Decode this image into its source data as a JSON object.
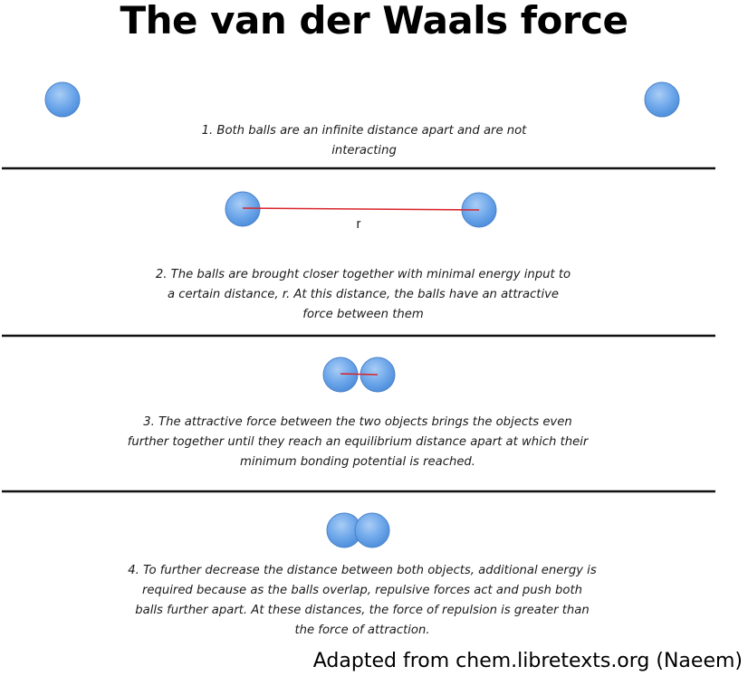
{
  "title": "The van der Waals force",
  "panels": [
    {
      "caption": "1. Both balls are an infinite distance apart and are not interacting"
    },
    {
      "caption": "2. The balls are brought closer together with minimal energy input to a certain distance, r.  At this distance, the balls have an attractive force between them",
      "distance_label": "r"
    },
    {
      "caption": "3. The attractive force between the two objects brings the objects even further together until they reach an equilibrium distance apart at which their minimum bonding potential is reached."
    },
    {
      "caption": "4.  To further decrease the distance between both objects, additional energy is required because as the balls overlap, repulsive forces act and push both balls further apart.  At these distances, the force of repulsion is greater than the force of attraction."
    }
  ],
  "credit": "Adapted from chem.libretexts.org (Naeem)",
  "colors": {
    "ball_fill_light": "#8fbcf0",
    "ball_fill": "#5b9be4",
    "ball_stroke": "#4a82c8",
    "distance_line": "#d9262c",
    "divider": "#111111"
  }
}
